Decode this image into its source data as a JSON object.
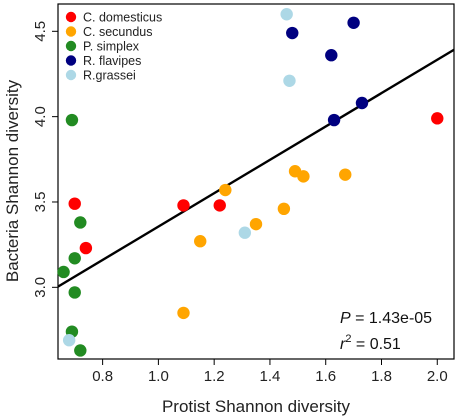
{
  "chart_data": {
    "type": "scatter",
    "title": "",
    "xlabel": "Protist Shannon diversity",
    "ylabel": "Bacteria Shannon diversity",
    "xlim": [
      0.64,
      2.06
    ],
    "ylim": [
      2.58,
      4.66
    ],
    "xticks": [
      0.8,
      1.0,
      1.2,
      1.4,
      1.6,
      1.8,
      2.0
    ],
    "xtick_labels": [
      "0.8",
      "1.0",
      "1.2",
      "1.4",
      "1.6",
      "1.8",
      "2.0"
    ],
    "yticks": [
      3.0,
      3.5,
      4.0,
      4.5
    ],
    "ytick_labels": [
      "3.0",
      "3.5",
      "4.0",
      "4.5"
    ],
    "grid": false,
    "legend_position": "top-left",
    "series": [
      {
        "name": "C. domesticus",
        "color": "#ff0000",
        "points": [
          [
            0.7,
            3.49
          ],
          [
            0.74,
            3.23
          ],
          [
            1.09,
            3.48
          ],
          [
            1.22,
            3.48
          ],
          [
            2.0,
            3.99
          ]
        ]
      },
      {
        "name": "C. secundus",
        "color": "#ffa500",
        "points": [
          [
            1.09,
            2.85
          ],
          [
            1.15,
            3.27
          ],
          [
            1.24,
            3.57
          ],
          [
            1.35,
            3.37
          ],
          [
            1.45,
            3.46
          ],
          [
            1.49,
            3.68
          ],
          [
            1.52,
            3.65
          ],
          [
            1.67,
            3.66
          ]
        ]
      },
      {
        "name": "P. simplex",
        "color": "#228b22",
        "points": [
          [
            0.66,
            3.09
          ],
          [
            0.69,
            2.74
          ],
          [
            0.7,
            2.97
          ],
          [
            0.7,
            3.17
          ],
          [
            0.72,
            2.63
          ],
          [
            0.72,
            3.38
          ],
          [
            0.69,
            3.98
          ]
        ]
      },
      {
        "name": "R. flavipes",
        "color": "#000080",
        "points": [
          [
            1.48,
            4.49
          ],
          [
            1.62,
            4.36
          ],
          [
            1.7,
            4.55
          ],
          [
            1.63,
            3.98
          ],
          [
            1.73,
            4.08
          ]
        ]
      },
      {
        "name": "R.grassei",
        "color": "#add8e6",
        "points": [
          [
            0.68,
            2.69
          ],
          [
            1.31,
            3.32
          ],
          [
            1.46,
            4.6
          ],
          [
            1.47,
            4.21
          ]
        ]
      }
    ],
    "fit_line": {
      "x": [
        0.64,
        2.06
      ],
      "y": [
        3.004,
        4.392
      ],
      "color": "#000000"
    },
    "annotations": {
      "p_label": "P",
      "p_value": " = 1.43e-05",
      "r_label": "r",
      "r_sup": "2",
      "r_value": " = 0.51"
    }
  }
}
